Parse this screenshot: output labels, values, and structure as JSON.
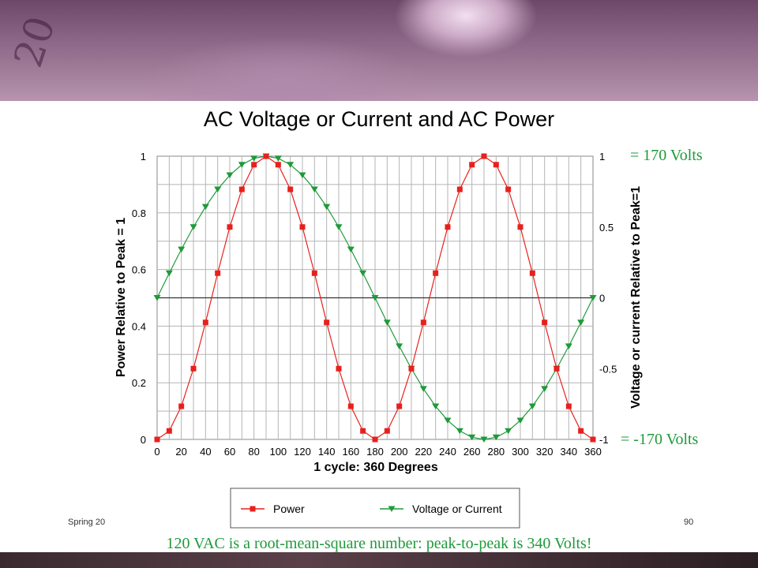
{
  "banner": {
    "decor_text": "20"
  },
  "chart_data": {
    "type": "line",
    "title": "AC Voltage or Current and AC Power",
    "xlabel": "1 cycle:  360 Degrees",
    "ylabel_left": "Power Relative to Peak = 1",
    "ylabel_right": "Voltage or current Relative to Peak=1",
    "x_ticks": [
      "0",
      "20",
      "40",
      "60",
      "80",
      "100",
      "120",
      "140",
      "160",
      "180",
      "200",
      "220",
      "240",
      "260",
      "280",
      "300",
      "320",
      "340",
      "360"
    ],
    "y_left_ticks": [
      "0",
      "0.2",
      "0.4",
      "0.6",
      "0.8",
      "1"
    ],
    "y_right_ticks": [
      "-1",
      "-0.5",
      "0",
      "0.5",
      "1"
    ],
    "xlim": [
      0,
      360
    ],
    "ylim_left": [
      0,
      1
    ],
    "ylim_right": [
      -1,
      1
    ],
    "grid": true,
    "legend_position": "bottom",
    "x": [
      0,
      10,
      20,
      30,
      40,
      50,
      60,
      70,
      80,
      90,
      100,
      110,
      120,
      130,
      140,
      150,
      160,
      170,
      180,
      190,
      200,
      210,
      220,
      230,
      240,
      250,
      260,
      270,
      280,
      290,
      300,
      310,
      320,
      330,
      340,
      350,
      360
    ],
    "series": [
      {
        "name": "Power",
        "axis": "left",
        "color": "#e8201c",
        "marker": "square",
        "values": [
          0,
          0.03,
          0.117,
          0.25,
          0.413,
          0.587,
          0.75,
          0.883,
          0.97,
          1,
          0.97,
          0.883,
          0.75,
          0.587,
          0.413,
          0.25,
          0.117,
          0.03,
          0,
          0.03,
          0.117,
          0.25,
          0.413,
          0.587,
          0.75,
          0.883,
          0.97,
          1,
          0.97,
          0.883,
          0.75,
          0.587,
          0.413,
          0.25,
          0.117,
          0.03,
          0
        ]
      },
      {
        "name": "Voltage or Current",
        "axis": "right",
        "color": "#1f9a3a",
        "marker": "triangle-down",
        "values": [
          0,
          0.174,
          0.342,
          0.5,
          0.643,
          0.766,
          0.866,
          0.94,
          0.985,
          1,
          0.985,
          0.94,
          0.866,
          0.766,
          0.643,
          0.5,
          0.342,
          0.174,
          0,
          -0.174,
          -0.342,
          -0.5,
          -0.643,
          -0.766,
          -0.866,
          -0.94,
          -0.985,
          -1,
          -0.985,
          -0.94,
          -0.866,
          -0.766,
          -0.643,
          -0.5,
          -0.342,
          -0.174,
          0
        ]
      }
    ]
  },
  "annotations": {
    "peak_positive": "= 170 Volts",
    "peak_negative": "= -170 Volts"
  },
  "footer": {
    "left": "Spring 20",
    "page_number": "90"
  },
  "caption": "120 VAC is a root-mean-square number: peak-to-peak is 340 Volts!"
}
